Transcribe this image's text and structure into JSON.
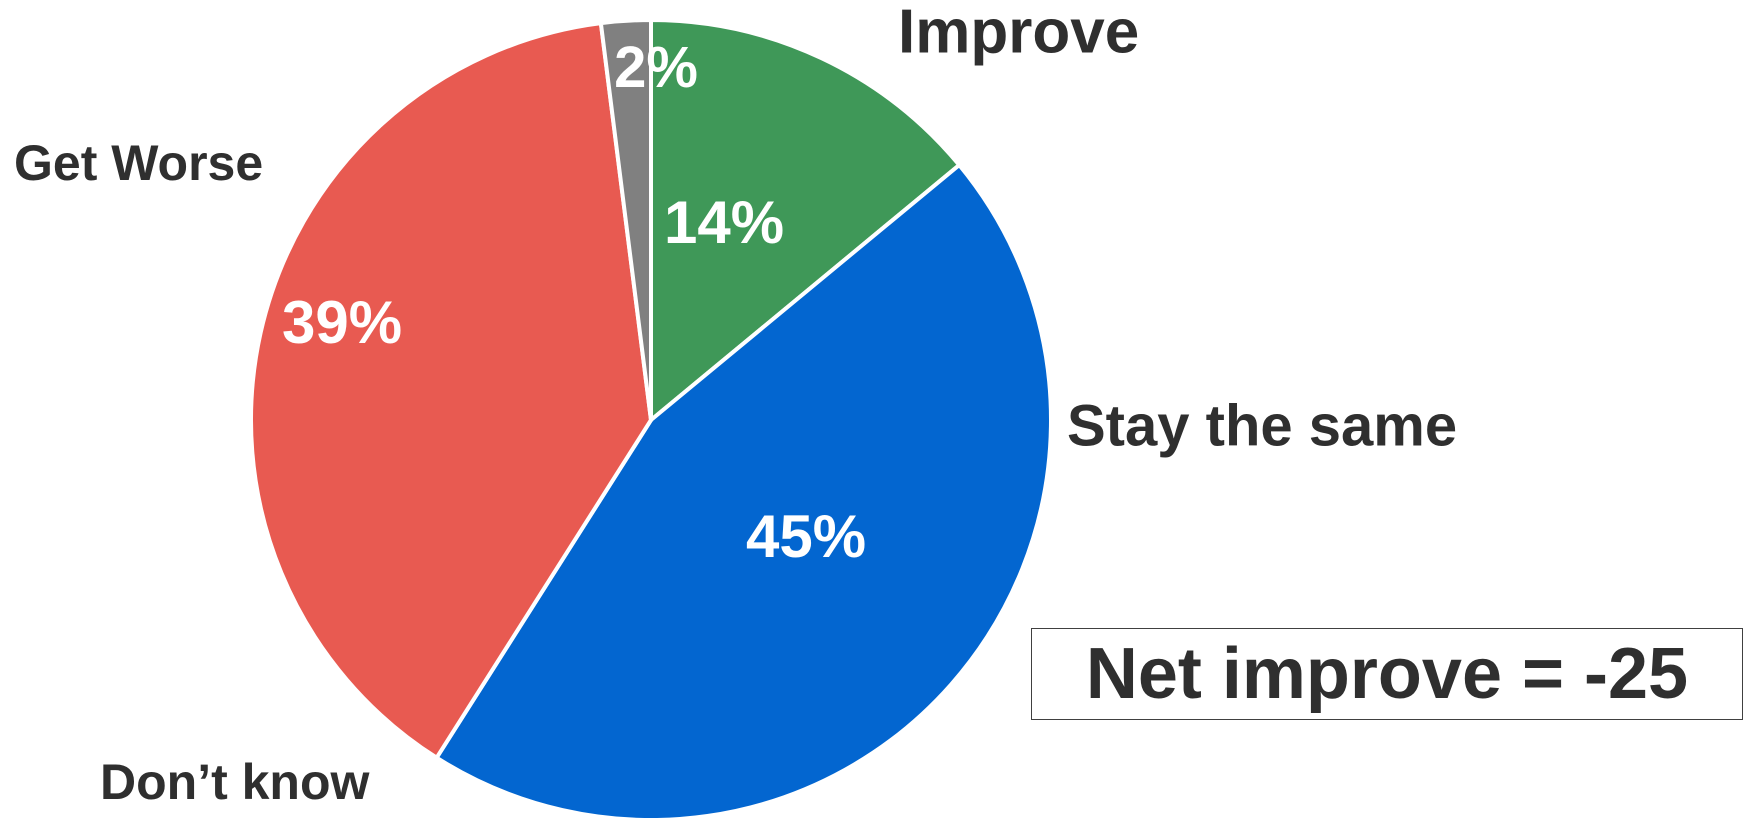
{
  "chart_data": {
    "type": "pie",
    "title": "",
    "slices": [
      {
        "label": "Improve",
        "value": 14,
        "value_label": "14%",
        "color": "#3f9858"
      },
      {
        "label": "Stay the same",
        "value": 45,
        "value_label": "45%",
        "color": "#0366d0"
      },
      {
        "label": "Get Worse",
        "value": 39,
        "value_label": "39%",
        "color": "#e85a51"
      },
      {
        "label": "Don’t know",
        "value": 2,
        "value_label": "2%",
        "color": "#808080"
      }
    ],
    "start_angle": "12 o'clock",
    "direction": "clockwise",
    "legend": "none (category labels placed outside slices)"
  },
  "annotation": {
    "net_text": "Net improve = -25"
  }
}
